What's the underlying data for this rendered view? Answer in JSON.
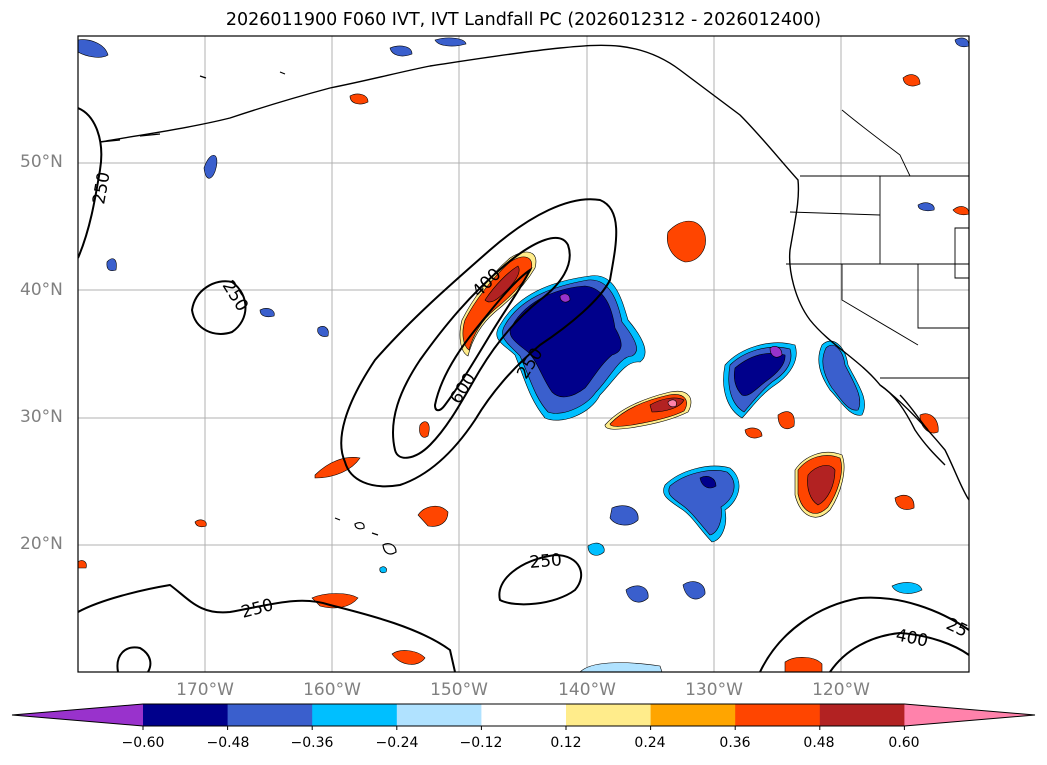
{
  "title": "2026011900 F060 IVT, IVT Landfall PC (2026012312 - 2026012400)",
  "lat_labels": [
    "50°N",
    "40°N",
    "30°N",
    "20°N"
  ],
  "lon_labels": [
    "170°W",
    "160°W",
    "150°W",
    "140°W",
    "130°W",
    "120°W"
  ],
  "contour_labels": {
    "c250_nw": "250",
    "c250_left": "250",
    "c400_core": "400",
    "c600_core": "600",
    "c250_core": "250",
    "c250_center": "250",
    "c250_south": "250",
    "c400_se": "400",
    "c25_edge": "25"
  },
  "colorbar": {
    "ticks": [
      "−0.60",
      "−0.48",
      "−0.36",
      "−0.24",
      "−0.12",
      "0.12",
      "0.24",
      "0.36",
      "0.48",
      "0.60"
    ],
    "colors": [
      "#9932CC",
      "#00008B",
      "#3A5FCD",
      "#00BFFF",
      "#B0E2FF",
      "#FFFFFF",
      "#FFEC8B",
      "#FFA500",
      "#FF4500",
      "#B22222",
      "#FF82AB"
    ]
  },
  "fill_colors": {
    "purple": "#9932CC",
    "navy": "#00008B",
    "royal": "#3A5FCD",
    "sky": "#00BFFF",
    "lightsky": "#B0E2FF",
    "yellow": "#FFEC8B",
    "orange": "#FFA500",
    "redorange": "#FF4500",
    "firebrick": "#B22222",
    "pink": "#FF82AB"
  }
}
